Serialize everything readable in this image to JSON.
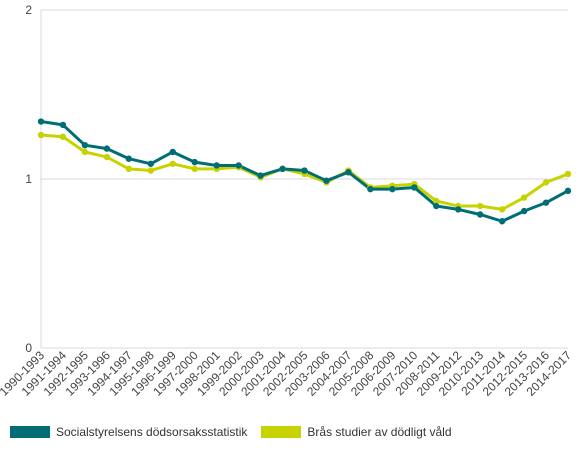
{
  "chart_data": {
    "type": "line",
    "categories": [
      "1990-1993",
      "1991-1994",
      "1992-1995",
      "1993-1996",
      "1994-1997",
      "1995-1998",
      "1996-1999",
      "1997-2000",
      "1998-2001",
      "1999-2002",
      "2000-2003",
      "2001-2004",
      "2002-2005",
      "2003-2006",
      "2004-2007",
      "2005-2008",
      "2006-2009",
      "2007-2010",
      "2008-2011",
      "2009-2012",
      "2010-2013",
      "2011-2014",
      "2012-2015",
      "2013-2016",
      "2014-2017"
    ],
    "ylim": [
      0,
      2
    ],
    "yticks": [
      "0",
      "1",
      "2"
    ],
    "grid": "horizontal",
    "legend_position": "bottom-left",
    "series": [
      {
        "name": "Socialstyrelsens dödsorsaksstatistik",
        "color": "#006e74",
        "values": [
          1.34,
          1.32,
          1.2,
          1.18,
          1.12,
          1.09,
          1.16,
          1.1,
          1.08,
          1.08,
          1.02,
          1.06,
          1.05,
          0.99,
          1.04,
          0.94,
          0.94,
          0.95,
          0.84,
          0.82,
          0.79,
          0.75,
          0.81,
          0.86,
          0.93
        ]
      },
      {
        "name": "Brås studier av dödligt våld",
        "color": "#c7d300",
        "values": [
          1.26,
          1.25,
          1.16,
          1.13,
          1.06,
          1.05,
          1.09,
          1.06,
          1.06,
          1.07,
          1.01,
          1.06,
          1.03,
          0.98,
          1.05,
          0.95,
          0.96,
          0.97,
          0.87,
          0.84,
          0.84,
          0.82,
          0.89,
          0.98,
          1.03
        ]
      }
    ]
  }
}
